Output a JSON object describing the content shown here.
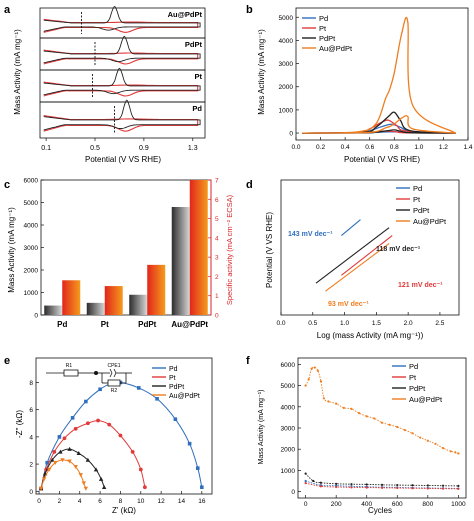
{
  "colors": {
    "pd": "#2f6fbd",
    "pt": "#e03a3a",
    "pdpt": "#222222",
    "aupdpt": "#ef7d1f",
    "red_axis": "#d9262b",
    "bar_gray": "#6d6d6d",
    "bar_red": "#e8401f"
  },
  "panels": {
    "a": {
      "label": "a",
      "ylabel": "Mass Activity (mA mg⁻¹)",
      "xlabel": "Potential (V VS RHE)",
      "xticks": [
        "0.1",
        "0.5",
        "0.9",
        "1.3"
      ],
      "strip_labels": [
        "Au@PdPt",
        "PdPt",
        "Pt",
        "Pd"
      ]
    },
    "b": {
      "label": "b",
      "ylabel": "Mass Activity (mA mg⁻¹)",
      "xlabel": "Potential (V VS RHE)",
      "yticks": [
        "0",
        "1000",
        "2000",
        "3000",
        "4000",
        "5000"
      ],
      "xticks": [
        "0.0",
        "0.2",
        "0.4",
        "0.6",
        "0.8",
        "1.0",
        "1.2",
        "1.4"
      ],
      "legend": [
        "Pd",
        "Pt",
        "PdPt",
        "Au@PdPt"
      ]
    },
    "c": {
      "label": "c",
      "ylabel_left": "Mass Activity (mA mg⁻¹)",
      "ylabel_right": "Specific activity (mA cm⁻² ECSA)",
      "yticks_left": [
        "0",
        "1000",
        "2000",
        "3000",
        "4000",
        "5000",
        "6000"
      ],
      "yticks_right": [
        "0",
        "1",
        "2",
        "3",
        "4",
        "5",
        "6",
        "7"
      ]
    },
    "d": {
      "label": "d",
      "ylabel": "Potential (V VS RHE)",
      "xlabel": "Log (mass Activity (mA mg⁻¹))",
      "xticks": [
        "0.0",
        "0.5",
        "1.0",
        "1.5",
        "2.0",
        "2.5"
      ],
      "legend": [
        "Pd",
        "Pt",
        "PdPt",
        "Au@PdPt"
      ],
      "annotations": [
        {
          "text": "143 mV dec⁻¹",
          "series": "Pd"
        },
        {
          "text": "118 mV dec⁻¹",
          "series": "PdPt"
        },
        {
          "text": "121 mV dec⁻¹",
          "series": "Pt"
        },
        {
          "text": "93 mV dec⁻¹",
          "series": "Au@PdPt"
        }
      ]
    },
    "e": {
      "label": "e",
      "ylabel": "-Z'' (kΩ)",
      "xlabel": "Z' (kΩ)",
      "xticks": [
        "0",
        "2",
        "4",
        "6",
        "8",
        "10",
        "12",
        "14",
        "16"
      ],
      "yticks": [
        "0",
        "2",
        "4",
        "6",
        "8"
      ],
      "legend": [
        "Pd",
        "Pt",
        "PdPt",
        "Au@PdPt"
      ],
      "circuit_labels": [
        "R1",
        "CPE1",
        "R2"
      ]
    },
    "f": {
      "label": "f",
      "ylabel": "Mass Activity (mA mg⁻¹)",
      "xlabel": "Cycles",
      "xticks": [
        "0",
        "200",
        "400",
        "600",
        "800",
        "1000"
      ],
      "yticks": [
        "0",
        "1000",
        "2000",
        "3000",
        "4000",
        "5000",
        "6000"
      ],
      "legend": [
        "Pd",
        "Pt",
        "PdPt",
        "Au@PdPt"
      ]
    }
  },
  "chart_data": [
    {
      "panel": "a",
      "type": "line",
      "xlabel": "Potential (V VS RHE)",
      "ylabel": "Mass Activity (mA mg⁻¹)",
      "xlim": [
        0.05,
        1.4
      ],
      "series": [
        {
          "name": "Au@PdPt",
          "note_peak_potential": 0.66
        },
        {
          "name": "PdPt",
          "note_peak_potential": 0.74
        },
        {
          "name": "Pt",
          "note_peak_potential": 0.7
        },
        {
          "name": "Pd",
          "note_peak_potential": 0.76
        }
      ]
    },
    {
      "panel": "b",
      "type": "line",
      "xlabel": "Potential (V VS RHE)",
      "ylabel": "Mass Activity (mA mg⁻¹)",
      "xlim": [
        0.0,
        1.4
      ],
      "ylim": [
        -300,
        5400
      ],
      "series": [
        {
          "name": "Pd",
          "x": [
            0.05,
            0.5,
            0.6,
            0.7,
            0.78,
            0.85,
            0.95,
            1.3
          ],
          "y": [
            0,
            20,
            100,
            280,
            380,
            250,
            60,
            0
          ]
        },
        {
          "name": "Pt",
          "x": [
            0.05,
            0.5,
            0.6,
            0.68,
            0.75,
            0.82,
            0.9,
            1.3
          ],
          "y": [
            0,
            30,
            180,
            420,
            560,
            320,
            80,
            0
          ]
        },
        {
          "name": "PdPt",
          "x": [
            0.05,
            0.55,
            0.65,
            0.75,
            0.8,
            0.85,
            0.93,
            1.3
          ],
          "y": [
            0,
            40,
            250,
            700,
            900,
            550,
            100,
            0
          ]
        },
        {
          "name": "Au@PdPt",
          "x": [
            0.05,
            0.5,
            0.65,
            0.73,
            0.76,
            0.8,
            0.86,
            0.91,
            0.95,
            1.3
          ],
          "y": [
            0,
            50,
            400,
            1500,
            1850,
            2600,
            4300,
            4800,
            1200,
            0
          ]
        }
      ]
    },
    {
      "panel": "c",
      "type": "bar",
      "categories": [
        "Pd",
        "Pt",
        "PdPt",
        "Au@PdPt"
      ],
      "ylim_left": [
        0,
        6000
      ],
      "ylim_right": [
        0,
        7
      ],
      "series": [
        {
          "name": "Mass Activity (mA mg⁻¹)",
          "values": [
            420,
            540,
            900,
            4800
          ],
          "axis": "left"
        },
        {
          "name": "Specific activity (mA cm⁻² ECSA)",
          "values": [
            1.8,
            1.5,
            2.6,
            7.0
          ],
          "axis": "right"
        }
      ]
    },
    {
      "panel": "d",
      "type": "line",
      "xlabel": "Log (mass Activity (mA mg⁻¹))",
      "ylabel": "Potential (V VS RHE)",
      "xlim": [
        0.0,
        2.8
      ],
      "series": [
        {
          "name": "Pd",
          "x": [
            0.95,
            1.25
          ],
          "y": [
            0.78,
            0.82
          ]
        },
        {
          "name": "Pt",
          "x": [
            0.95,
            1.75
          ],
          "y": [
            0.68,
            0.78
          ]
        },
        {
          "name": "PdPt",
          "x": [
            0.55,
            1.7
          ],
          "y": [
            0.66,
            0.8
          ]
        },
        {
          "name": "Au@PdPt",
          "x": [
            0.7,
            1.7
          ],
          "y": [
            0.64,
            0.76
          ]
        }
      ]
    },
    {
      "panel": "e",
      "type": "scatter",
      "xlabel": "Z' (kΩ)",
      "ylabel": "-Z'' (kΩ)",
      "xlim": [
        -0.3,
        17
      ],
      "ylim": [
        -0.2,
        9.8
      ],
      "series": [
        {
          "name": "Pd",
          "x": [
            0.2,
            0.8,
            2.0,
            3.3,
            4.6,
            6.0,
            7.0,
            8.0,
            9.8,
            11.6,
            13.4,
            14.8,
            15.6,
            16.0
          ],
          "y": [
            0.2,
            2.1,
            4.0,
            5.4,
            6.6,
            7.5,
            7.9,
            8.0,
            7.6,
            6.8,
            5.3,
            3.5,
            1.7,
            0.3
          ]
        },
        {
          "name": "Pt",
          "x": [
            0.2,
            0.7,
            1.5,
            2.5,
            3.6,
            4.8,
            5.8,
            6.9,
            8.0,
            9.2,
            10.0,
            10.4
          ],
          "y": [
            0.2,
            1.6,
            2.9,
            3.9,
            4.6,
            5.0,
            5.2,
            4.9,
            4.1,
            2.9,
            1.6,
            0.3
          ]
        },
        {
          "name": "PdPt",
          "x": [
            0.2,
            0.6,
            1.3,
            2.1,
            3.0,
            3.9,
            4.8,
            5.6,
            6.1,
            6.4
          ],
          "y": [
            0.2,
            1.3,
            2.3,
            2.9,
            3.1,
            2.8,
            2.3,
            1.6,
            0.9,
            0.3
          ]
        },
        {
          "name": "Au@PdPt",
          "x": [
            0.2,
            0.5,
            1.0,
            1.6,
            2.3,
            3.0,
            3.6,
            4.1,
            4.4,
            4.6
          ],
          "y": [
            0.2,
            0.9,
            1.6,
            2.1,
            2.3,
            2.2,
            1.8,
            1.2,
            0.6,
            0.2
          ]
        }
      ]
    },
    {
      "panel": "f",
      "type": "line",
      "xlabel": "Cycles",
      "ylabel": "Mass Activity (mA mg⁻¹)",
      "xlim": [
        -50,
        1050
      ],
      "ylim": [
        -300,
        6300
      ],
      "series": [
        {
          "name": "Au@PdPt",
          "x": [
            0,
            20,
            40,
            60,
            80,
            100,
            120,
            150,
            200,
            250,
            300,
            350,
            400,
            450,
            500,
            550,
            600,
            650,
            700,
            750,
            800,
            850,
            900,
            950,
            980,
            1000
          ],
          "y": [
            5000,
            5300,
            5800,
            5850,
            5700,
            5200,
            4400,
            4250,
            4150,
            3950,
            3900,
            3700,
            3550,
            3450,
            3250,
            3150,
            3050,
            2900,
            2750,
            2550,
            2400,
            2250,
            2050,
            1900,
            1850,
            1800
          ]
        },
        {
          "name": "Pd",
          "x": [
            0,
            100,
            200,
            300,
            400,
            500,
            600,
            700,
            800,
            900,
            1000
          ],
          "y": [
            500,
            300,
            280,
            250,
            230,
            210,
            200,
            180,
            170,
            160,
            150
          ]
        },
        {
          "name": "Pt",
          "x": [
            0,
            100,
            200,
            300,
            400,
            500,
            600,
            700,
            800,
            900,
            1000
          ],
          "y": [
            400,
            250,
            220,
            200,
            190,
            180,
            170,
            160,
            150,
            140,
            130
          ]
        },
        {
          "name": "PdPt",
          "x": [
            0,
            50,
            100,
            200,
            300,
            400,
            500,
            600,
            700,
            800,
            900,
            1000
          ],
          "y": [
            850,
            500,
            420,
            370,
            350,
            340,
            320,
            310,
            300,
            290,
            280,
            270
          ]
        }
      ]
    }
  ]
}
